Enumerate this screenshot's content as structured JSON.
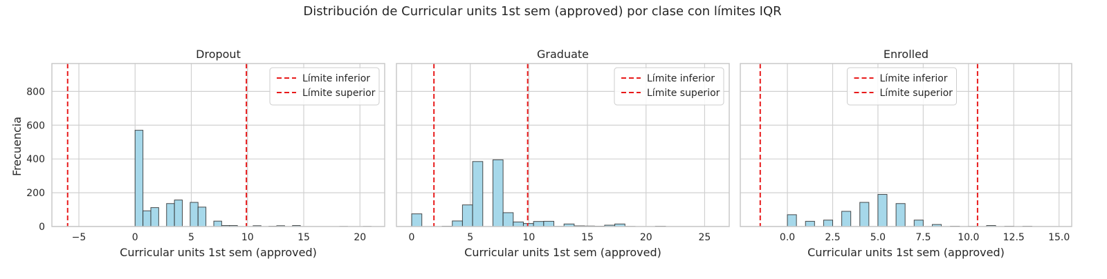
{
  "suptitle": "Distribución de Curricular units 1st sem (approved) por clase con límites IQR",
  "ylabel": "Frecuencia",
  "legend_labels": [
    "Límite inferior",
    "Límite superior"
  ],
  "colors": {
    "bar_fill": "#a6d8ea",
    "bar_edge": "#2b2b2b",
    "limit_line": "#e8191a",
    "grid": "#d0d0d0",
    "frame": "#c8c8c8"
  },
  "chart_data": [
    {
      "type": "bar",
      "title": "Dropout",
      "xlabel": "Curricular units 1st sem (approved)",
      "ylabel": "Frecuencia",
      "xlim": [
        -7.4,
        22.2
      ],
      "ylim": [
        0,
        965
      ],
      "xticks": [
        -5,
        0,
        5,
        10,
        15,
        20
      ],
      "yticks": [
        0,
        200,
        400,
        600,
        800
      ],
      "bin_width": 0.7,
      "bins_start": [
        0.0,
        0.7,
        1.4,
        2.8,
        3.5,
        4.9,
        5.6,
        7.0,
        7.7,
        8.4,
        10.5,
        11.9,
        12.6,
        14.0,
        18.2,
        20.3
      ],
      "values": [
        570,
        93,
        112,
        136,
        157,
        143,
        115,
        32,
        6,
        6,
        5,
        2,
        5,
        6,
        1,
        1
      ],
      "lower_limit": -6.0,
      "upper_limit": 9.9,
      "legend_position": "upper right",
      "grid": true
    },
    {
      "type": "bar",
      "title": "Graduate",
      "xlabel": "Curricular units 1st sem (approved)",
      "ylabel": "Frecuencia",
      "xlim": [
        -1.3,
        27.1
      ],
      "ylim": [
        0,
        965
      ],
      "xticks": [
        0,
        5,
        10,
        15,
        20,
        25
      ],
      "yticks": [
        0,
        200,
        400,
        600,
        800
      ],
      "bin_width": 0.867,
      "bins_start": [
        0.0,
        2.6,
        3.467,
        4.333,
        5.2,
        6.933,
        7.8,
        8.667,
        9.533,
        10.4,
        11.267,
        12.133,
        13.0,
        13.867,
        14.733,
        15.6,
        16.467,
        17.333,
        18.2,
        20.8
      ],
      "values": [
        75,
        2,
        33,
        128,
        385,
        395,
        82,
        27,
        18,
        30,
        31,
        1,
        15,
        4,
        3,
        2,
        8,
        15,
        1,
        2
      ],
      "lower_limit": 1.9,
      "upper_limit": 9.9,
      "legend_position": "upper right",
      "grid": true
    },
    {
      "type": "bar",
      "title": "Enrolled",
      "xlabel": "Curricular units 1st sem (approved)",
      "ylabel": "Frecuencia",
      "xlim": [
        -2.6,
        15.7
      ],
      "ylim": [
        0,
        965
      ],
      "xticks": [
        0.0,
        2.5,
        5.0,
        7.5,
        10.0,
        12.5,
        15.0
      ],
      "xtick_labels": [
        "0.0",
        "2.5",
        "5.0",
        "7.5",
        "10.0",
        "12.5",
        "15.0"
      ],
      "yticks": [
        0,
        200,
        400,
        600,
        800
      ],
      "bin_width": 0.5,
      "bins_start": [
        0.0,
        1.0,
        2.0,
        3.0,
        4.0,
        5.0,
        6.0,
        7.0,
        8.0,
        9.0,
        10.0,
        11.0,
        12.0,
        13.0
      ],
      "values": [
        70,
        31,
        38,
        90,
        143,
        190,
        136,
        38,
        12,
        2,
        1,
        6,
        2,
        2
      ],
      "lower_limit": -1.5,
      "upper_limit": 10.5,
      "legend_position": "upper center",
      "grid": true
    }
  ]
}
